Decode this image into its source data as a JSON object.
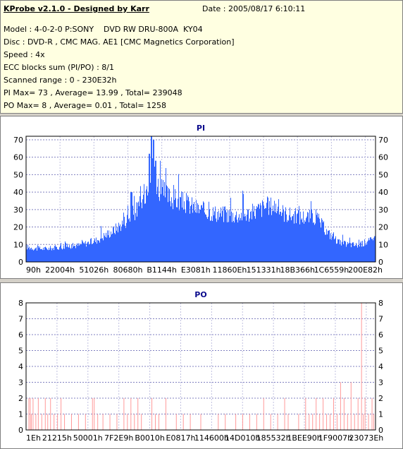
{
  "info": {
    "title": "KProbe v2.1.0 - Designed by Karr",
    "date": "Date : 2005/08/17 6:10:11",
    "lines": [
      "Model : 4-0-2-0 P:SONY    DVD RW DRU-800A  KY04",
      "Disc : DVD-R , CMC MAG. AE1 [CMC Magnetics Corporation]",
      "Speed : 4x",
      "ECC blocks sum (PI/PO) : 8/1",
      "Scanned range : 0 - 230E32h",
      "PI Max= 73 , Average= 13.99 , Total= 239048",
      "PO Max= 8 , Average= 0.01 , Total= 1258"
    ]
  },
  "chart_data": [
    {
      "type": "bar",
      "title": "PI",
      "color": "#3366ff",
      "ylim": [
        0,
        72
      ],
      "yticks": [
        0,
        10,
        20,
        30,
        40,
        50,
        60,
        70
      ],
      "xtick_labels": [
        "90h",
        "22004h",
        "51026h",
        "80680h",
        "B1144h",
        "E3081h",
        "11860Eh",
        "151331h",
        "18B366h",
        "1C6559h",
        "200E82h"
      ],
      "grid": true,
      "profile": [
        [
          0,
          9
        ],
        [
          0.03,
          8
        ],
        [
          0.06,
          8
        ],
        [
          0.1,
          9
        ],
        [
          0.15,
          10
        ],
        [
          0.2,
          13
        ],
        [
          0.25,
          19
        ],
        [
          0.28,
          24
        ],
        [
          0.31,
          30
        ],
        [
          0.33,
          35
        ],
        [
          0.345,
          46
        ],
        [
          0.355,
          57
        ],
        [
          0.365,
          54
        ],
        [
          0.38,
          44
        ],
        [
          0.4,
          40
        ],
        [
          0.43,
          37
        ],
        [
          0.46,
          35
        ],
        [
          0.5,
          31
        ],
        [
          0.55,
          29
        ],
        [
          0.6,
          28
        ],
        [
          0.64,
          29
        ],
        [
          0.68,
          33
        ],
        [
          0.71,
          34
        ],
        [
          0.74,
          29
        ],
        [
          0.78,
          27
        ],
        [
          0.83,
          27
        ],
        [
          0.86,
          18
        ],
        [
          0.9,
          11
        ],
        [
          0.95,
          10
        ],
        [
          1.0,
          14
        ]
      ],
      "peaks": [
        [
          0.358,
          72
        ],
        [
          0.364,
          70
        ],
        [
          0.352,
          62
        ],
        [
          0.37,
          58
        ],
        [
          0.3,
          40
        ],
        [
          0.44,
          37
        ]
      ]
    },
    {
      "type": "bar",
      "title": "PO",
      "color": "#ff9999",
      "ylim": [
        0,
        8
      ],
      "yticks": [
        0,
        1,
        2,
        3,
        4,
        5,
        6,
        7,
        8
      ],
      "xtick_labels": [
        "1Eh",
        "21215h",
        "50001h",
        "7F2E9h",
        "B0010h",
        "E0817h",
        "114600h",
        "14D010h",
        "185532h",
        "1BEE90h",
        "1F9007h",
        "23073Eh"
      ],
      "grid": true,
      "spikes": [
        [
          0.008,
          2
        ],
        [
          0.012,
          2
        ],
        [
          0.015,
          1
        ],
        [
          0.02,
          2
        ],
        [
          0.028,
          1
        ],
        [
          0.035,
          2
        ],
        [
          0.045,
          1
        ],
        [
          0.055,
          2
        ],
        [
          0.062,
          1
        ],
        [
          0.07,
          2
        ],
        [
          0.08,
          1
        ],
        [
          0.09,
          1
        ],
        [
          0.1,
          2
        ],
        [
          0.11,
          1
        ],
        [
          0.13,
          1
        ],
        [
          0.15,
          1
        ],
        [
          0.17,
          1
        ],
        [
          0.19,
          2
        ],
        [
          0.195,
          2
        ],
        [
          0.205,
          1
        ],
        [
          0.22,
          1
        ],
        [
          0.24,
          1
        ],
        [
          0.26,
          1
        ],
        [
          0.28,
          2
        ],
        [
          0.29,
          1
        ],
        [
          0.3,
          2
        ],
        [
          0.31,
          1
        ],
        [
          0.32,
          2
        ],
        [
          0.33,
          1
        ],
        [
          0.36,
          2
        ],
        [
          0.37,
          1
        ],
        [
          0.38,
          1
        ],
        [
          0.4,
          2
        ],
        [
          0.43,
          1
        ],
        [
          0.45,
          1
        ],
        [
          0.47,
          1
        ],
        [
          0.5,
          1
        ],
        [
          0.55,
          1
        ],
        [
          0.57,
          1
        ],
        [
          0.6,
          1
        ],
        [
          0.62,
          1
        ],
        [
          0.64,
          1
        ],
        [
          0.66,
          1
        ],
        [
          0.68,
          2
        ],
        [
          0.7,
          1
        ],
        [
          0.72,
          1
        ],
        [
          0.74,
          2
        ],
        [
          0.75,
          1
        ],
        [
          0.78,
          1
        ],
        [
          0.8,
          2
        ],
        [
          0.81,
          1
        ],
        [
          0.82,
          1
        ],
        [
          0.83,
          2
        ],
        [
          0.84,
          1
        ],
        [
          0.85,
          2
        ],
        [
          0.86,
          1
        ],
        [
          0.87,
          1
        ],
        [
          0.88,
          2
        ],
        [
          0.89,
          1
        ],
        [
          0.9,
          3
        ],
        [
          0.91,
          2
        ],
        [
          0.92,
          1
        ],
        [
          0.93,
          3
        ],
        [
          0.94,
          1
        ],
        [
          0.95,
          2
        ],
        [
          0.96,
          8
        ],
        [
          0.965,
          1
        ],
        [
          0.97,
          2
        ],
        [
          0.98,
          1
        ],
        [
          0.99,
          2
        ],
        [
          0.995,
          1
        ]
      ]
    }
  ]
}
